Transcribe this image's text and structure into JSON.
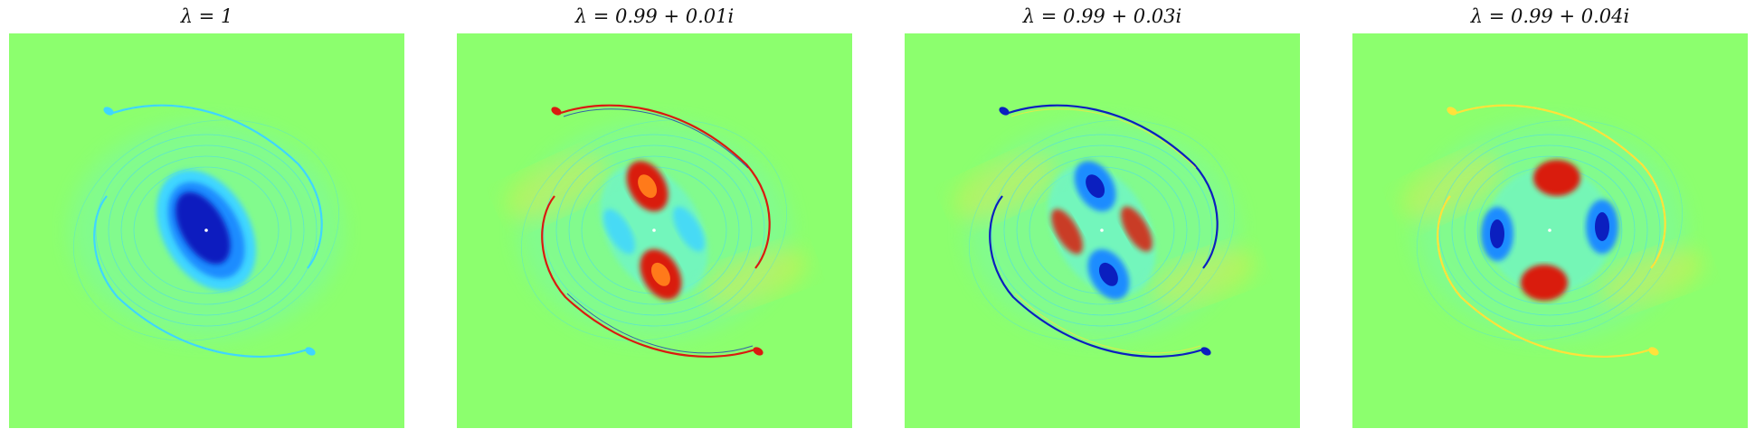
{
  "panels": [
    {
      "title": "λ = 1",
      "scheme": "mono"
    },
    {
      "title": "λ = 0.99 + 0.01i",
      "scheme": "split"
    },
    {
      "title": "λ = 0.99 + 0.03i",
      "scheme": "split"
    },
    {
      "title": "λ = 0.99 + 0.04i",
      "scheme": "quad"
    }
  ],
  "colormap": "jet",
  "colors": {
    "background": "#8cff6e",
    "deep_blue": "#0b1fbf",
    "blue": "#1f8cff",
    "cyan": "#3fd6ff",
    "light_cyan": "#6ff5c8",
    "yellow": "#ffe23a",
    "orange": "#ff7a1a",
    "red": "#d91a10"
  }
}
